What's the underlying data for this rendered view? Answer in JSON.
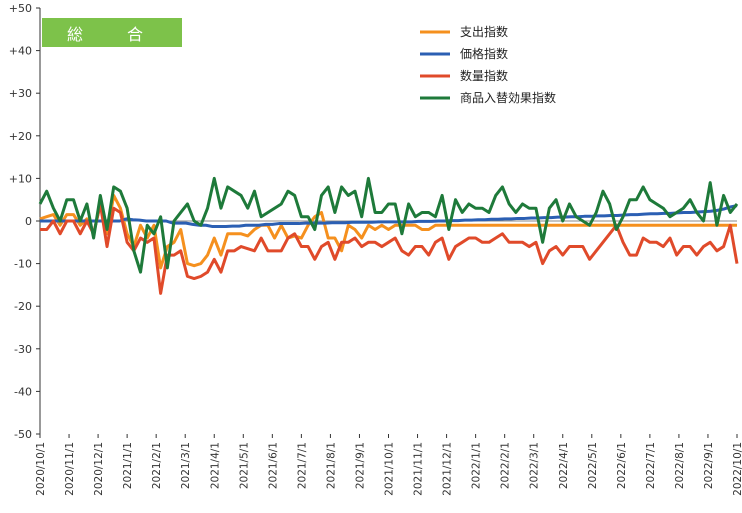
{
  "badge_label": "総　合",
  "chart_data": {
    "type": "line",
    "ylim": [
      -50,
      50
    ],
    "yticks": [
      50,
      40,
      30,
      20,
      10,
      0,
      -10,
      -20,
      -30,
      -40,
      -50
    ],
    "ytick_labels": [
      "+50",
      "+40",
      "+30",
      "+20",
      "+10",
      "0",
      "-10",
      "-20",
      "-30",
      "-40",
      "-50"
    ],
    "x_tick_labels": [
      "2020/10/1",
      "2020/11/1",
      "2020/12/1",
      "2021/1/1",
      "2021/2/1",
      "2021/3/1",
      "2021/4/1",
      "2021/5/1",
      "2021/6/1",
      "2021/7/1",
      "2021/8/1",
      "2021/9/1",
      "2021/10/1",
      "2021/11/1",
      "2021/12/1",
      "2022/1/1",
      "2022/2/1",
      "2022/3/1",
      "2022/4/1",
      "2022/5/1",
      "2022/6/1",
      "2022/7/1",
      "2022/8/1",
      "2022/9/1",
      "2022/10/1"
    ],
    "x_start": "2020/10/1",
    "x_end": "2022/10/1",
    "legend_position": "top-right",
    "series": [
      {
        "name": "支出指数",
        "color": "#f5901e",
        "values": [
          0.5,
          1,
          1.5,
          -1,
          1.5,
          1.5,
          -1,
          0.5,
          -3,
          4,
          -3,
          6,
          3,
          -3,
          -6,
          -1,
          -4,
          -1,
          -11,
          -6,
          -5,
          -2,
          -10,
          -10.5,
          -10,
          -8,
          -4,
          -8,
          -3,
          -3,
          -3,
          -3.5,
          -2,
          -1,
          -1,
          -4,
          -1,
          -4,
          -3.5,
          -4,
          -1,
          1,
          2,
          -4,
          -4,
          -7,
          -1,
          -2,
          -4,
          -1,
          -2,
          -1,
          -2,
          -1,
          -1,
          -1,
          -1,
          -2,
          -2,
          -1,
          -1,
          -1,
          -1,
          -1,
          -1,
          -1,
          -1,
          -1,
          -1,
          -1,
          -1,
          -1,
          -1,
          -1,
          -1,
          -1,
          -1,
          -1,
          -1,
          -1,
          -1,
          -1,
          -1,
          -1,
          -1,
          -1,
          -1,
          -1,
          -1,
          -1,
          -1,
          -1,
          -1,
          -1,
          -1,
          -1,
          -1,
          -1,
          -1,
          -1,
          -1,
          -1,
          -1,
          -1,
          -1
        ]
      },
      {
        "name": "価格指数",
        "color": "#2b5fb3",
        "values": [
          0,
          0,
          0,
          0,
          0,
          0,
          0,
          0,
          0,
          0,
          0,
          0,
          0,
          0.5,
          0.3,
          0.2,
          0,
          0,
          0,
          0,
          -0.5,
          -0.5,
          -0.5,
          -0.8,
          -1,
          -1,
          -1.3,
          -1.3,
          -1.3,
          -1.2,
          -1.2,
          -1,
          -1,
          -1,
          -0.8,
          -0.8,
          -0.6,
          -0.6,
          -0.6,
          -0.6,
          -0.5,
          -0.5,
          -0.5,
          -0.5,
          -0.4,
          -0.4,
          -0.4,
          -0.3,
          -0.3,
          -0.3,
          -0.3,
          -0.2,
          -0.2,
          -0.2,
          -0.2,
          -0.2,
          -0.2,
          -0.1,
          -0.1,
          -0.1,
          0,
          0,
          0.1,
          0.1,
          0.2,
          0.2,
          0.3,
          0.3,
          0.4,
          0.4,
          0.5,
          0.5,
          0.6,
          0.6,
          0.7,
          0.7,
          0.8,
          0.8,
          0.9,
          0.9,
          1,
          1,
          1.1,
          1.1,
          1.2,
          1.2,
          1.3,
          1.3,
          1.4,
          1.5,
          1.5,
          1.6,
          1.7,
          1.7,
          1.8,
          1.8,
          1.9,
          2,
          2,
          2.1,
          2.2,
          2.3,
          2.5,
          2.8,
          3.3,
          3.6
        ]
      },
      {
        "name": "数量指数",
        "color": "#e04a2a",
        "values": [
          -2,
          -2,
          0,
          -3,
          0,
          0,
          -3,
          0,
          -3,
          4,
          -6,
          3,
          2,
          -5,
          -7,
          -4,
          -5,
          -4,
          -17,
          -8,
          -8,
          -7,
          -13,
          -13.5,
          -13,
          -12,
          -9,
          -12,
          -7,
          -7,
          -6,
          -6.5,
          -7,
          -4,
          -7,
          -7,
          -7,
          -4,
          -3,
          -6,
          -6,
          -9,
          -6,
          -5,
          -9,
          -5,
          -5,
          -4,
          -6,
          -5,
          -5,
          -6,
          -5,
          -4,
          -7,
          -8,
          -6,
          -6,
          -8,
          -5,
          -4,
          -9,
          -6,
          -5,
          -4,
          -4,
          -5,
          -5,
          -4,
          -3,
          -5,
          -5,
          -5,
          -6,
          -5,
          -10,
          -7,
          -6,
          -8,
          -6,
          -6,
          -6,
          -9,
          -7,
          -5,
          -3,
          -1,
          -5,
          -8,
          -8,
          -4,
          -5,
          -5,
          -6,
          -4,
          -8,
          -6,
          -6,
          -8,
          -6,
          -5,
          -7,
          -6,
          -1,
          -10
        ]
      },
      {
        "name": "商品入替効果指数",
        "color": "#1e7a3a",
        "values": [
          4,
          7,
          3,
          0,
          5,
          5,
          0,
          4,
          -4,
          6,
          -2,
          8,
          7,
          3,
          -7,
          -12,
          -1,
          -3,
          1,
          -11,
          0,
          2,
          4,
          0,
          -1,
          3,
          10,
          3,
          8,
          7,
          6,
          3,
          7,
          1,
          2,
          3,
          4,
          7,
          6,
          1,
          1,
          -2,
          6,
          8,
          2,
          8,
          6,
          7,
          1,
          10,
          2,
          2,
          4,
          4,
          -3,
          4,
          1,
          2,
          2,
          1,
          6,
          -2,
          5,
          2,
          4,
          3,
          3,
          2,
          6,
          8,
          4,
          2,
          4,
          3,
          3,
          -5,
          3,
          5,
          0,
          4,
          1,
          0,
          -1,
          2,
          7,
          4,
          -2,
          1,
          5,
          5,
          8,
          5,
          4,
          3,
          1,
          2,
          3,
          5,
          2,
          0,
          9,
          -1,
          6,
          2,
          4
        ]
      }
    ]
  }
}
